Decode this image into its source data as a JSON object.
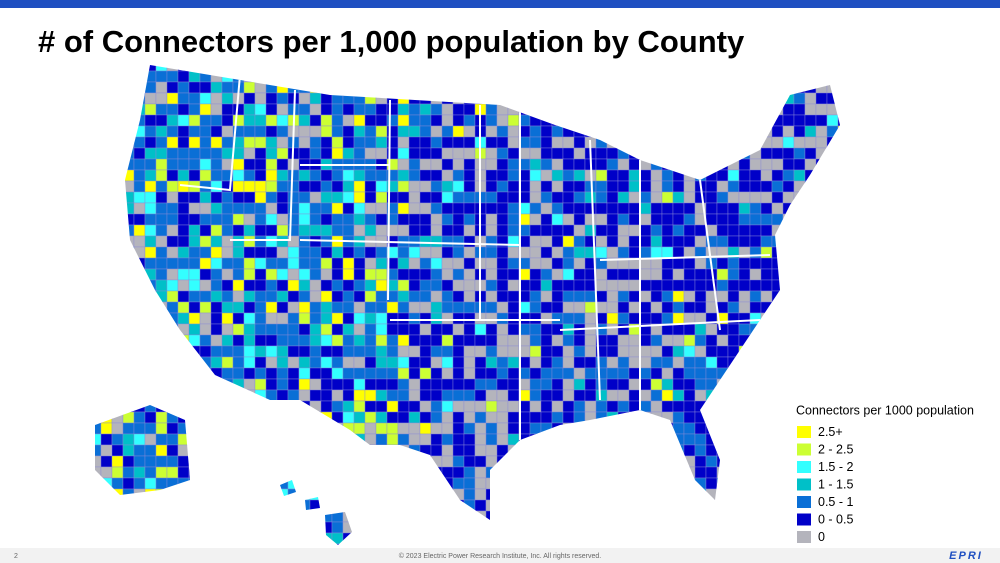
{
  "header": {
    "title": "# of Connectors per 1,000 population by County"
  },
  "legend": {
    "title": "Connectors per 1000 population",
    "items": [
      {
        "label": "2.5+",
        "color": "#ffff00"
      },
      {
        "label": "2 - 2.5",
        "color": "#ccff33"
      },
      {
        "label": "1.5 - 2",
        "color": "#33ffff"
      },
      {
        "label": "1 - 1.5",
        "color": "#00c0c8"
      },
      {
        "label": "0.5 - 1",
        "color": "#0a6fd6"
      },
      {
        "label": "0 - 0.5",
        "color": "#0000c8"
      },
      {
        "label": "0",
        "color": "#b4b4bc"
      }
    ]
  },
  "footer": {
    "page": "2",
    "copyright": "© 2023 Electric Power Research Institute, Inc. All rights reserved.",
    "logo": "EPRI"
  }
}
